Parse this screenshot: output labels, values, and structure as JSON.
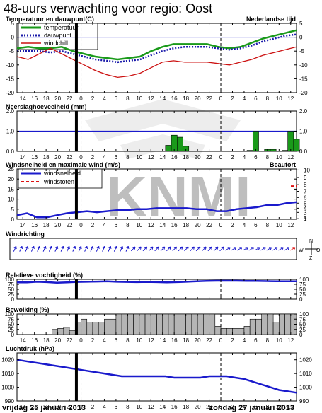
{
  "page": {
    "title": "48-uurs verwachting voor regio: Oost",
    "day1": "vrijdag 25 januari 2013",
    "day2": "zondag 27 januari 2013",
    "watermark": "KNMI"
  },
  "hour_labels": [
    "14",
    "16",
    "18",
    "20",
    "22",
    "0",
    "2",
    "4",
    "6",
    "8",
    "10",
    "12",
    "14",
    "16",
    "18",
    "20",
    "22",
    "0",
    "2",
    "4",
    "6",
    "8",
    "10",
    "12"
  ],
  "now_hour_index": 4.6,
  "midnight_hour_index": 5,
  "midnight2_hour_index": 17,
  "chart_data": [
    {
      "id": "temp",
      "type": "line",
      "title": "Temperatuur en dauwpunt(C)",
      "title_right": "Nederlandse tijd",
      "ylim": [
        -20,
        5
      ],
      "yticks": [
        5,
        0,
        -5,
        -10,
        -15,
        -20
      ],
      "ref_line": 0,
      "series": [
        {
          "name": "temperatuur",
          "color": "#1a9a1a",
          "values": [
            -4,
            -3.5,
            -4,
            -4,
            -3.5,
            -5,
            -6,
            -7,
            -7.5,
            -8,
            -7.5,
            -7,
            -5,
            -3.5,
            -2.5,
            -2.5,
            -2.5,
            -2.5,
            -3.5,
            -4,
            -3.5,
            -2,
            -0.5,
            0.5,
            1.5,
            2.5
          ]
        },
        {
          "name": "dauwpunt",
          "color": "#1a1aaa",
          "dash": "2,2",
          "values": [
            -5,
            -5,
            -5,
            -5.5,
            -5,
            -6,
            -7,
            -8,
            -8.5,
            -9,
            -8.5,
            -8,
            -6.5,
            -5,
            -4,
            -3.5,
            -3.5,
            -3.5,
            -4,
            -4.5,
            -4,
            -3,
            -1.5,
            -0.5,
            0.5,
            1
          ]
        },
        {
          "name": "windchill",
          "color": "#cc1111",
          "values": [
            -7,
            -8,
            -6,
            -4,
            -6,
            -8,
            -10,
            -12,
            -13.5,
            -14.5,
            -14,
            -13,
            -11,
            -9,
            -8.5,
            -9,
            -9,
            -9,
            -9.5,
            -10,
            -9,
            -8,
            -6.5,
            -5.5,
            -4.5,
            -3.5
          ]
        }
      ]
    },
    {
      "id": "precip",
      "type": "bar",
      "title": "Neerslaghoeveelheid (mm)",
      "ylim": [
        0,
        2
      ],
      "yticks": [
        "2.0",
        "1.0",
        "0.0"
      ],
      "ref_line": 1.0,
      "bars": [
        {
          "x": 13.0,
          "value": 0.3
        },
        {
          "x": 13.5,
          "value": 0.8
        },
        {
          "x": 14.0,
          "value": 0.7
        },
        {
          "x": 14.5,
          "value": 0.25
        },
        {
          "x": 20.0,
          "value": 0.05
        },
        {
          "x": 20.5,
          "value": 1.0
        },
        {
          "x": 21.5,
          "value": 0.1
        },
        {
          "x": 22.0,
          "value": 0.1
        },
        {
          "x": 23.0,
          "value": 0.05
        },
        {
          "x": 23.5,
          "value": 1.0
        },
        {
          "x": 24.0,
          "value": 0.6
        }
      ]
    },
    {
      "id": "wind",
      "type": "line",
      "title": "Windsnelheid en maximale wind (m/s)",
      "title_right": "Beaufort",
      "ylim": [
        0,
        25
      ],
      "yticks": [
        25,
        20,
        15,
        10,
        5,
        0
      ],
      "beaufort_ticks": [
        {
          "label": "10",
          "ms": 24.5
        },
        {
          "label": "9",
          "ms": 20.8
        },
        {
          "label": "8",
          "ms": 17.2
        },
        {
          "label": "7",
          "ms": 13.9
        },
        {
          "label": "6",
          "ms": 10.8
        },
        {
          "label": "5",
          "ms": 8.0
        },
        {
          "label": "4",
          "ms": 5.5
        },
        {
          "label": "3",
          "ms": 3.4
        },
        {
          "label": "2",
          "ms": 1.6
        },
        {
          "label": "1",
          "ms": 0.3
        }
      ],
      "series": [
        {
          "name": "windsnelheid",
          "color": "#1a1acc",
          "values": [
            2,
            3,
            1,
            1,
            2,
            3,
            3.5,
            4,
            3.5,
            4,
            4.5,
            4.5,
            5,
            5,
            5.5,
            5.5,
            5.5,
            5.5,
            5,
            5,
            4,
            4,
            5,
            5.5,
            6,
            7,
            7,
            8,
            8.5
          ]
        },
        {
          "name": "windstoten",
          "color": "#dd1111",
          "dash": "4,3",
          "values": [
            null,
            null,
            null,
            null,
            null,
            null,
            null,
            null,
            null,
            null,
            null,
            null,
            null,
            null,
            null,
            null,
            null,
            null,
            null,
            null,
            null,
            null,
            null,
            null,
            null,
            null,
            null,
            null,
            null,
            16.5
          ]
        }
      ]
    },
    {
      "id": "dir",
      "type": "scatter",
      "title": "Windrichting",
      "compass": [
        "N",
        "O",
        "Z",
        "W"
      ]
    },
    {
      "id": "rh",
      "type": "line",
      "title": "Relatieve vochtigheid (%)",
      "ylim": [
        0,
        100
      ],
      "yticks": [
        100,
        75,
        50,
        25,
        0
      ],
      "series": [
        {
          "name": "relatieve vochtigheid",
          "color": "#1a1acc",
          "values": [
            85,
            85,
            88,
            86,
            83,
            85,
            87,
            88,
            89,
            90,
            88,
            87,
            86,
            87,
            86,
            85,
            86,
            88,
            90,
            92,
            93,
            93,
            93,
            92,
            92,
            91,
            90,
            90,
            90
          ]
        }
      ]
    },
    {
      "id": "clouds",
      "type": "bar",
      "title": "Bewolking (%)",
      "ylim": [
        0,
        100
      ],
      "yticks": [
        100,
        75,
        50,
        25,
        0
      ],
      "values": [
        0,
        0,
        0,
        0,
        0,
        0,
        25,
        30,
        35,
        20,
        60,
        75,
        60,
        60,
        60,
        75,
        75,
        100,
        100,
        100,
        100,
        100,
        100,
        100,
        100,
        100,
        100,
        100,
        100,
        100,
        100,
        100,
        100,
        100,
        40,
        30,
        30,
        30,
        30,
        40,
        75,
        75,
        100,
        100,
        60,
        100,
        100,
        100
      ]
    },
    {
      "id": "pressure",
      "type": "line",
      "title": "Luchtdruk (hPa)",
      "ylim": [
        990,
        1025
      ],
      "yticks": [
        1020,
        1010,
        1000,
        990
      ],
      "series": [
        {
          "name": "luchtdruk",
          "color": "#1a1acc",
          "values": [
            1020,
            1019,
            1018,
            1017,
            1016,
            1015,
            1014,
            1013,
            1012,
            1011,
            1010,
            1009,
            1008,
            1008,
            1008,
            1008,
            1008,
            1008,
            1007,
            1007,
            1007,
            1007,
            1008,
            1008,
            1008,
            1007,
            1006,
            1004,
            1002,
            1000,
            998,
            997,
            996
          ]
        }
      ]
    }
  ]
}
